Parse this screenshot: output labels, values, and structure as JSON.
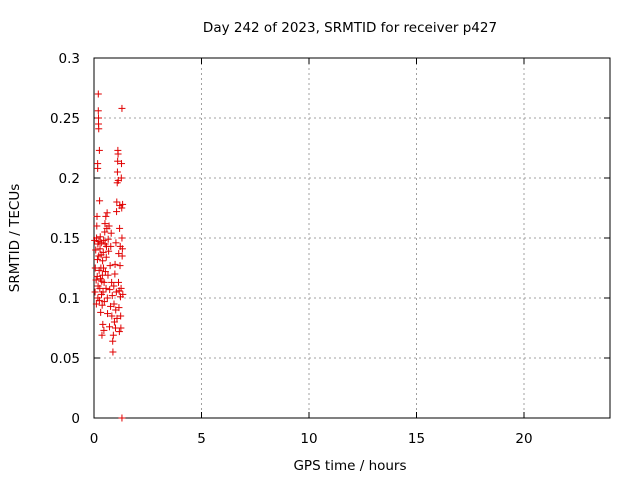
{
  "chart_data": {
    "type": "scatter",
    "title": "Day 242 of 2023, SRMTID for receiver p427",
    "xlabel": "GPS time / hours",
    "ylabel": "SRMTID / TECUs",
    "xlim": [
      0,
      24
    ],
    "ylim": [
      0,
      0.3
    ],
    "xticks": [
      0,
      5,
      10,
      15,
      20
    ],
    "xtick_labels": [
      "0",
      "5",
      "10",
      "15",
      "20"
    ],
    "yticks": [
      0,
      0.05,
      0.1,
      0.15,
      0.2,
      0.25,
      0.3
    ],
    "ytick_labels": [
      "0",
      "0.05",
      "0.1",
      "0.15",
      "0.2",
      "0.25",
      "0.3"
    ],
    "grid": true,
    "marker": "+",
    "marker_color": "#e00000",
    "series": [
      {
        "points": [
          [
            0.03,
            0.148
          ],
          [
            0.05,
            0.105
          ],
          [
            0.06,
            0.125
          ],
          [
            0.08,
            0.14
          ],
          [
            0.1,
            0.115
          ],
          [
            0.11,
            0.095
          ],
          [
            0.12,
            0.15
          ],
          [
            0.13,
            0.16
          ],
          [
            0.14,
            0.168
          ],
          [
            0.15,
            0.118
          ],
          [
            0.16,
            0.132
          ],
          [
            0.17,
            0.212
          ],
          [
            0.17,
            0.208
          ],
          [
            0.18,
            0.145
          ],
          [
            0.18,
            0.1
          ],
          [
            0.19,
            0.11
          ],
          [
            0.2,
            0.27
          ],
          [
            0.2,
            0.256
          ],
          [
            0.21,
            0.25
          ],
          [
            0.21,
            0.245
          ],
          [
            0.22,
            0.241
          ],
          [
            0.22,
            0.135
          ],
          [
            0.23,
            0.147
          ],
          [
            0.24,
            0.123
          ],
          [
            0.25,
            0.223
          ],
          [
            0.25,
            0.098
          ],
          [
            0.26,
            0.181
          ],
          [
            0.27,
            0.108
          ],
          [
            0.28,
            0.141
          ],
          [
            0.29,
            0.151
          ],
          [
            0.3,
            0.116
          ],
          [
            0.31,
            0.088
          ],
          [
            0.32,
            0.125
          ],
          [
            0.33,
            0.136
          ],
          [
            0.34,
            0.146
          ],
          [
            0.35,
            0.103
          ],
          [
            0.36,
            0.114
          ],
          [
            0.37,
            0.069
          ],
          [
            0.38,
            0.094
          ],
          [
            0.39,
            0.119
          ],
          [
            0.4,
            0.131
          ],
          [
            0.41,
            0.078
          ],
          [
            0.42,
            0.105
          ],
          [
            0.43,
            0.138
          ],
          [
            0.44,
            0.125
          ],
          [
            0.45,
            0.148
          ],
          [
            0.46,
            0.073
          ],
          [
            0.47,
            0.113
          ],
          [
            0.48,
            0.097
          ],
          [
            0.5,
            0.155
          ],
          [
            0.51,
            0.162
          ],
          [
            0.52,
            0.145
          ],
          [
            0.53,
            0.122
          ],
          [
            0.55,
            0.168
          ],
          [
            0.56,
            0.108
          ],
          [
            0.57,
            0.134
          ],
          [
            0.58,
            0.143
          ],
          [
            0.6,
            0.158
          ],
          [
            0.61,
            0.171
          ],
          [
            0.62,
            0.1
          ],
          [
            0.63,
            0.087
          ],
          [
            0.65,
            0.119
          ],
          [
            0.66,
            0.149
          ],
          [
            0.68,
            0.139
          ],
          [
            0.7,
            0.16
          ],
          [
            0.72,
            0.076
          ],
          [
            0.73,
            0.107
          ],
          [
            0.75,
            0.127
          ],
          [
            0.77,
            0.093
          ],
          [
            0.78,
            0.143
          ],
          [
            0.8,
            0.154
          ],
          [
            0.82,
            0.113
          ],
          [
            0.83,
            0.085
          ],
          [
            0.85,
            0.102
          ],
          [
            0.87,
            0.064
          ],
          [
            0.88,
            0.055
          ],
          [
            0.9,
            0.069
          ],
          [
            0.92,
            0.11
          ],
          [
            0.93,
            0.095
          ],
          [
            0.95,
            0.08
          ],
          [
            0.97,
            0.12
          ],
          [
            0.98,
            0.128
          ],
          [
            1.0,
            0.075
          ],
          [
            1.01,
            0.09
          ],
          [
            1.02,
            0.146
          ],
          [
            1.04,
            0.105
          ],
          [
            1.05,
            0.172
          ],
          [
            1.06,
            0.18
          ],
          [
            1.07,
            0.083
          ],
          [
            1.08,
            0.196
          ],
          [
            1.09,
            0.205
          ],
          [
            1.1,
            0.214
          ],
          [
            1.11,
            0.223
          ],
          [
            1.12,
            0.22
          ],
          [
            1.13,
            0.198
          ],
          [
            1.14,
            0.113
          ],
          [
            1.15,
            0.137
          ],
          [
            1.16,
            0.092
          ],
          [
            1.17,
            0.106
          ],
          [
            1.18,
            0.072
          ],
          [
            1.19,
            0.158
          ],
          [
            1.2,
            0.177
          ],
          [
            1.21,
            0.127
          ],
          [
            1.22,
            0.143
          ],
          [
            1.23,
            0.101
          ],
          [
            1.24,
            0.085
          ],
          [
            1.25,
            0.075
          ],
          [
            1.26,
            0.108
          ],
          [
            1.27,
            0.2
          ],
          [
            1.28,
            0.212
          ],
          [
            1.29,
            0.175
          ],
          [
            1.3,
            0.15
          ],
          [
            1.3,
            0.258
          ],
          [
            1.31,
            0.135
          ],
          [
            1.32,
            0.141
          ],
          [
            1.33,
            0.178
          ],
          [
            1.34,
            0.103
          ],
          [
            1.3,
            0.0
          ]
        ]
      }
    ]
  }
}
